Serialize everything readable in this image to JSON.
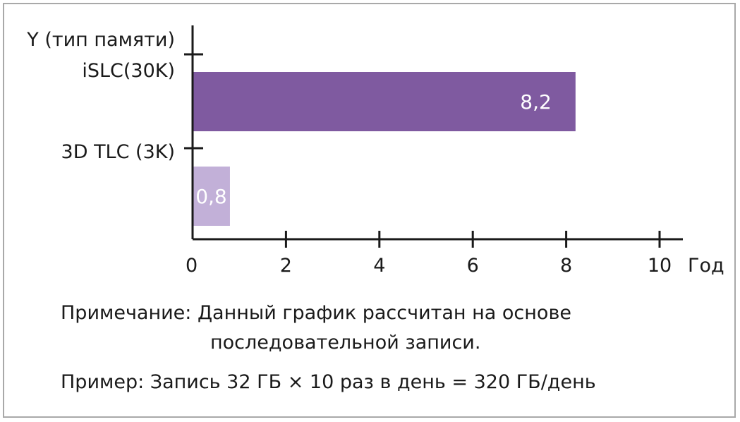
{
  "chart_data": {
    "type": "bar",
    "orientation": "horizontal",
    "ylabel": "Y (тип памяти)",
    "xlabel": "Год",
    "categories": [
      "iSLC(30K)",
      "3D TLC (3K)"
    ],
    "values": [
      8.2,
      0.8
    ],
    "value_labels": [
      "8,2",
      "0,8"
    ],
    "colors": [
      "#7f5aa0",
      "#c2b0d8"
    ],
    "x_ticks": [
      0,
      2,
      4,
      6,
      8,
      10
    ],
    "xlim": [
      0,
      10.5
    ],
    "grid": false
  },
  "notes": {
    "line1": "Примечание: Данный график рассчитан на основе",
    "line2": "последовательной записи.",
    "example": "Пример: Запись 32 ГБ × 10 раз в день = 320 ГБ/день"
  }
}
